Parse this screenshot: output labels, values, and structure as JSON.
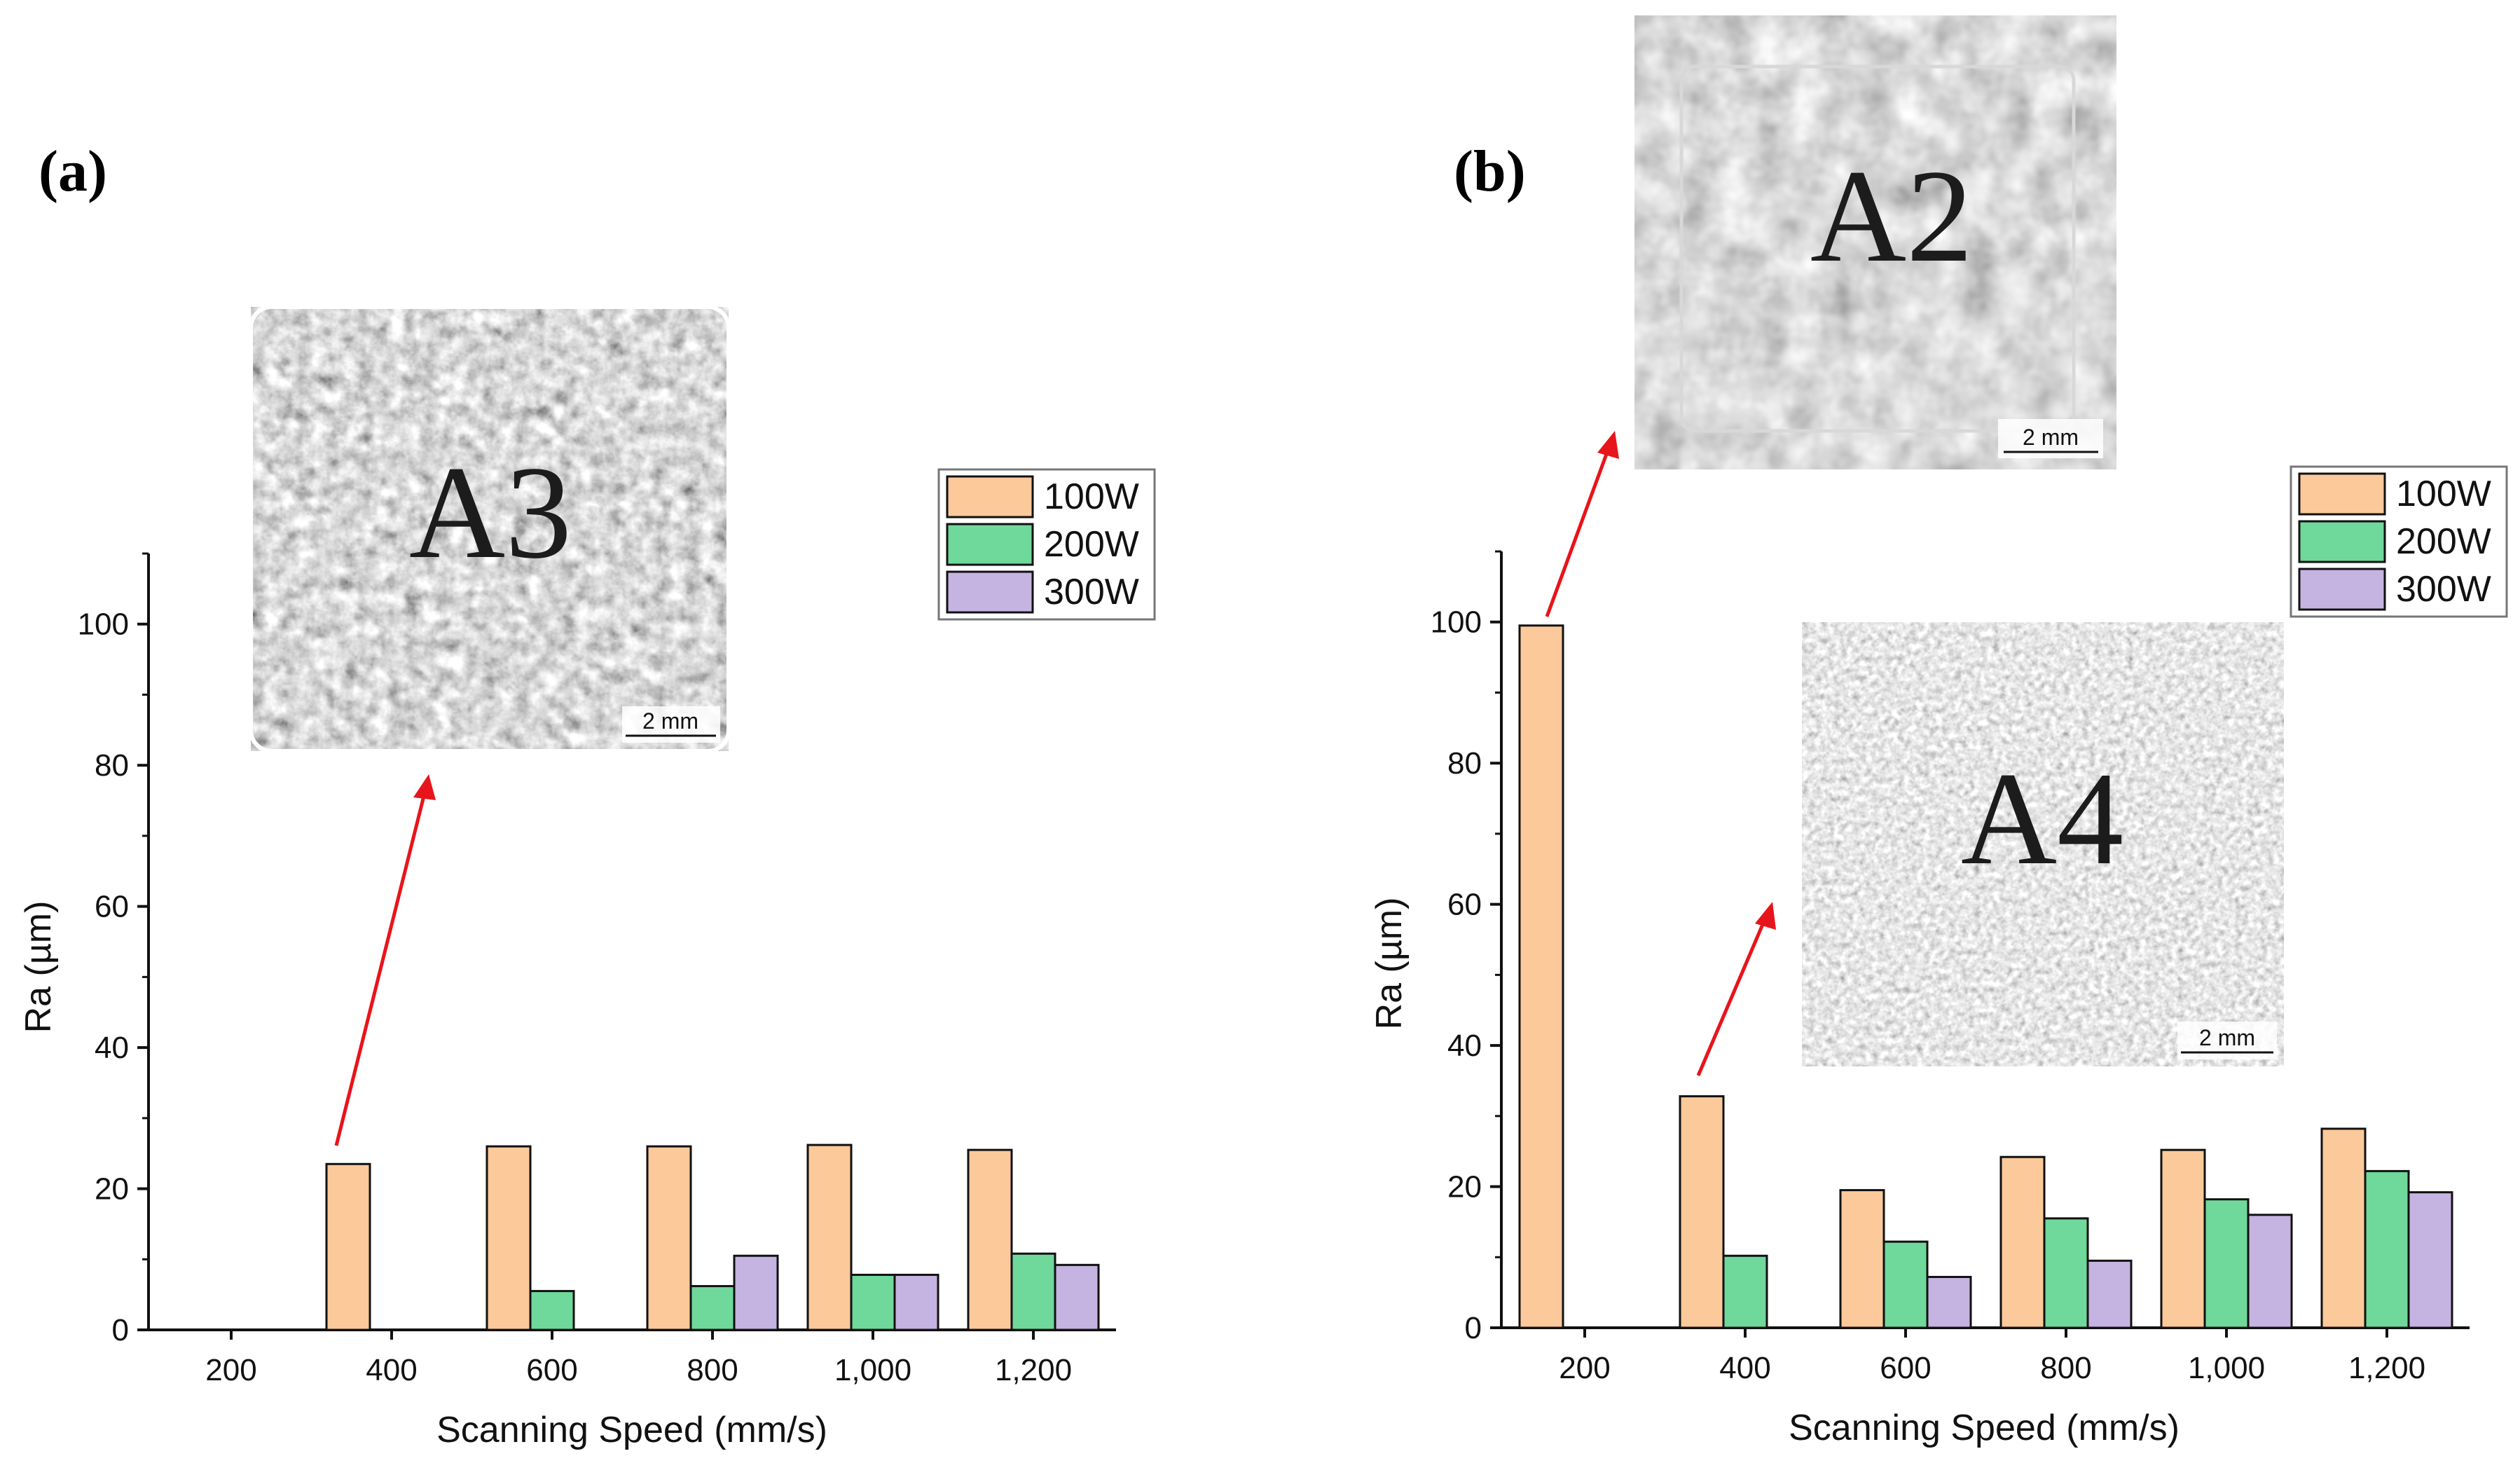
{
  "colors": {
    "100W": "#fcc99a",
    "200W": "#6fd89b",
    "300W": "#c5b3e1",
    "arrow": "#e8141b"
  },
  "chart_data": [
    {
      "panel": "(a)",
      "type": "bar",
      "categories": [
        "200",
        "400",
        "600",
        "800",
        "1,000",
        "1,200"
      ],
      "series": [
        {
          "name": "100W",
          "values": [
            null,
            23.5,
            26,
            26,
            26.2,
            25.5
          ]
        },
        {
          "name": "200W",
          "values": [
            null,
            null,
            5.5,
            6.2,
            7.8,
            10.8
          ]
        },
        {
          "name": "300W",
          "values": [
            null,
            null,
            null,
            10.5,
            7.8,
            9.2
          ]
        }
      ],
      "xlabel": "Scanning Speed (mm/s)",
      "ylabel": "Ra (µm)",
      "ylim": [
        0,
        110
      ],
      "yticks": [
        "0",
        "20",
        "40",
        "60",
        "80",
        "100"
      ],
      "legend": "top-right",
      "grid": false,
      "insets": [
        {
          "label": "A3",
          "scale": "2 mm"
        }
      ]
    },
    {
      "panel": "(b)",
      "type": "bar",
      "categories": [
        "200",
        "400",
        "600",
        "800",
        "1,000",
        "1,200"
      ],
      "series": [
        {
          "name": "100W",
          "values": [
            99.5,
            32.8,
            19.5,
            24.2,
            25.2,
            28.2
          ]
        },
        {
          "name": "200W",
          "values": [
            null,
            10.2,
            12.2,
            15.5,
            18.2,
            22.2
          ]
        },
        {
          "name": "300W",
          "values": [
            null,
            null,
            7.2,
            9.5,
            16,
            19.2
          ]
        }
      ],
      "xlabel": "Scanning Speed (mm/s)",
      "ylabel": "Ra (µm)",
      "ylim": [
        0,
        110
      ],
      "yticks": [
        "0",
        "20",
        "40",
        "60",
        "80",
        "100"
      ],
      "legend": "top-right",
      "grid": false,
      "insets": [
        {
          "label": "A2",
          "scale": "2 mm"
        },
        {
          "label": "A4",
          "scale": "2 mm"
        }
      ]
    }
  ]
}
